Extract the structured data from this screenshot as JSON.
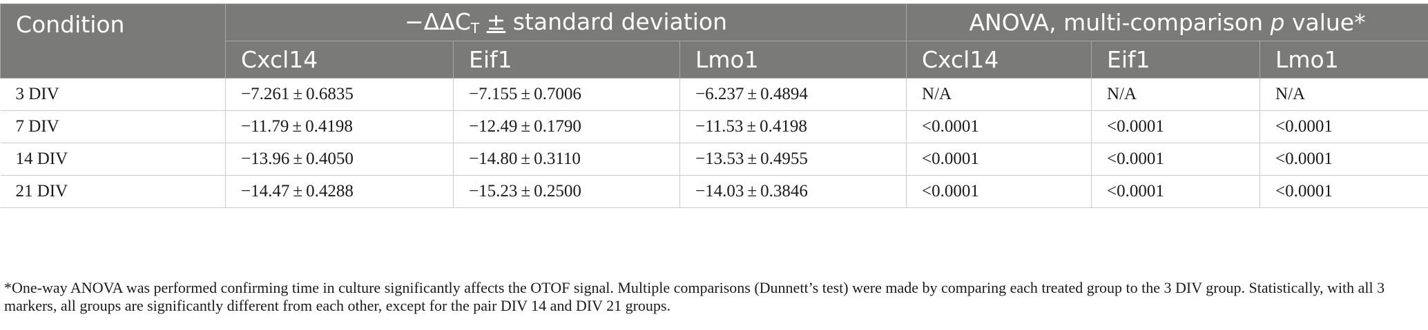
{
  "header": {
    "condition": "Condition",
    "group1": {
      "prefix": "−ΔΔC",
      "sub": "T",
      "pm": "±",
      "suffix": "standard deviation"
    },
    "group2": {
      "prefix": "ANOVA, multi-comparison ",
      "italic": "p",
      "suffix": " value*"
    },
    "subcols": [
      "Cxcl14",
      "Eif1",
      "Lmo1",
      "Cxcl14",
      "Eif1",
      "Lmo1"
    ]
  },
  "rows": [
    {
      "condition": "3 DIV",
      "cells": [
        "−7.261 ± 0.6835",
        "−7.155 ± 0.7006",
        "−6.237 ± 0.4894",
        "N/A",
        "N/A",
        "N/A"
      ]
    },
    {
      "condition": "7 DIV",
      "cells": [
        "−11.79 ± 0.4198",
        "−12.49 ± 0.1790",
        "−11.53 ± 0.4198",
        "<0.0001",
        "<0.0001",
        "<0.0001"
      ]
    },
    {
      "condition": "14 DIV",
      "cells": [
        "−13.96 ± 0.4050",
        "−14.80 ± 0.3110",
        "−13.53 ± 0.4955",
        "<0.0001",
        "<0.0001",
        "<0.0001"
      ]
    },
    {
      "condition": "21 DIV",
      "cells": [
        "−14.47 ± 0.4288",
        "−15.23 ± 0.2500",
        "−14.03 ± 0.3846",
        "<0.0001",
        "<0.0001",
        "<0.0001"
      ]
    }
  ],
  "footnote": "*One-way ANOVA was performed confirming time in culture significantly affects the OTOF signal. Multiple comparisons (Dunnett’s test) were made by comparing each treated group to the 3 DIV group. Statistically, with all 3 markers, all groups are significantly different from each other, except for the pair DIV 14 and DIV 21 groups."
}
